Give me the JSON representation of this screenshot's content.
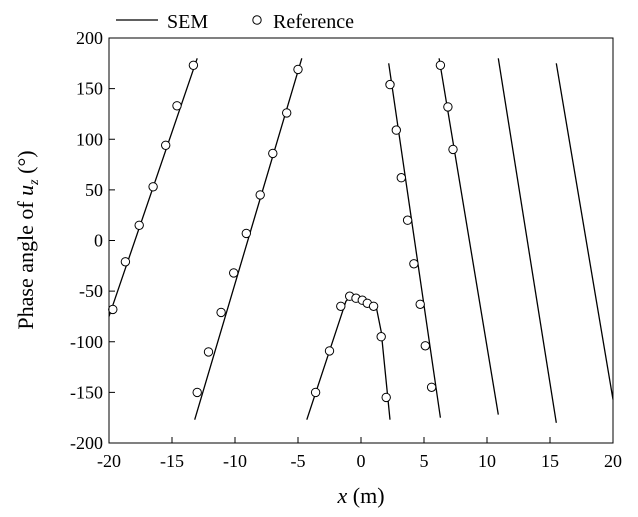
{
  "chart_data": {
    "type": "line",
    "xlabel": "x (m)",
    "xlabel_var": "x",
    "xlabel_unit": " (m)",
    "ylabel": "Phase angle of u_z (°)",
    "ylabel_text": "Phase angle of ",
    "ylabel_var": "u",
    "ylabel_sub": "z",
    "ylabel_unit": " (°)",
    "xlim": [
      -20,
      20
    ],
    "ylim": [
      -200,
      200
    ],
    "xticks": [
      -20,
      -15,
      -10,
      -5,
      0,
      5,
      10,
      15,
      20
    ],
    "yticks": [
      -200,
      -150,
      -100,
      -50,
      0,
      50,
      100,
      150,
      200
    ],
    "grid": false,
    "legend": {
      "placement": "top",
      "entries": [
        "SEM",
        "Reference"
      ]
    },
    "series": [
      {
        "name": "SEM",
        "style": "solid-line",
        "color": "#000000",
        "segments": [
          [
            [
              -20.0,
              -75
            ],
            [
              -13.0,
              180
            ]
          ],
          [
            [
              -13.2,
              -177
            ],
            [
              -4.7,
              180
            ]
          ],
          [
            [
              -4.3,
              -177
            ],
            [
              -1.2,
              -60
            ],
            [
              -0.8,
              -55
            ],
            [
              1.2,
              -65
            ],
            [
              1.6,
              -90
            ],
            [
              2.3,
              -177
            ]
          ],
          [
            [
              2.2,
              175
            ],
            [
              6.3,
              -175
            ]
          ],
          [
            [
              6.2,
              180
            ],
            [
              10.9,
              -172
            ]
          ],
          [
            [
              10.9,
              180
            ],
            [
              15.5,
              -180
            ]
          ],
          [
            [
              15.5,
              175
            ],
            [
              20.0,
              -157
            ]
          ]
        ]
      },
      {
        "name": "Reference",
        "style": "open-circle",
        "color": "#000000",
        "points": [
          [
            -13.3,
            173
          ],
          [
            -14.6,
            133
          ],
          [
            -15.5,
            94
          ],
          [
            -16.5,
            53
          ],
          [
            -17.6,
            15
          ],
          [
            -18.7,
            -21
          ],
          [
            -19.7,
            -68
          ],
          [
            -5.0,
            169
          ],
          [
            -5.9,
            126
          ],
          [
            -7.0,
            86
          ],
          [
            -8.0,
            45
          ],
          [
            -9.1,
            7
          ],
          [
            -10.1,
            -32
          ],
          [
            -11.1,
            -71
          ],
          [
            -12.1,
            -110
          ],
          [
            -13.0,
            -150
          ],
          [
            -0.9,
            -55
          ],
          [
            -0.4,
            -57
          ],
          [
            0.1,
            -59
          ],
          [
            0.5,
            -62
          ],
          [
            1.0,
            -65
          ],
          [
            -1.6,
            -65
          ],
          [
            -2.5,
            -109
          ],
          [
            -3.6,
            -150
          ],
          [
            1.6,
            -95
          ],
          [
            2.0,
            -155
          ],
          [
            2.3,
            154
          ],
          [
            2.8,
            109
          ],
          [
            3.2,
            62
          ],
          [
            3.7,
            20
          ],
          [
            4.2,
            -23
          ],
          [
            4.7,
            -63
          ],
          [
            5.1,
            -104
          ],
          [
            5.6,
            -145
          ],
          [
            6.3,
            173
          ],
          [
            6.9,
            132
          ],
          [
            7.3,
            90
          ]
        ]
      }
    ]
  }
}
